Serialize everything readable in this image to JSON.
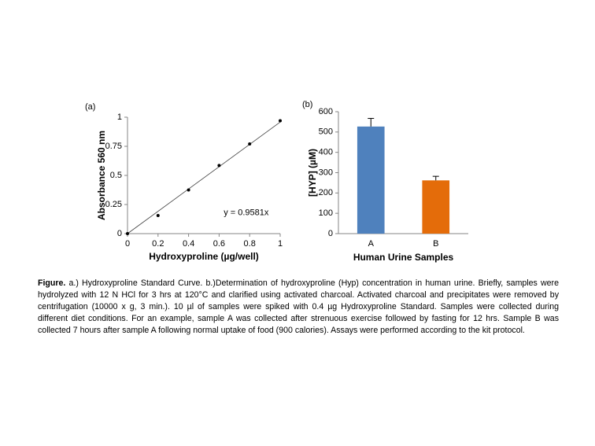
{
  "chart_data": [
    {
      "type": "scatter",
      "panel_label": "(a)",
      "x_label": "Hydroxyproline  (µg/well)",
      "y_label": "Absorbance 560 nm",
      "x": [
        0,
        0.2,
        0.4,
        0.6,
        0.8,
        1
      ],
      "values": [
        0,
        0.155,
        0.375,
        0.585,
        0.77,
        0.97
      ],
      "color": "#000000",
      "trendline": {
        "slope": 0.9581,
        "label": "y = 0.9581x"
      },
      "xlim": [
        0,
        1
      ],
      "xticks": [
        0,
        0.2,
        0.4,
        0.6,
        0.8,
        1
      ],
      "ylim": [
        0,
        1
      ],
      "yticks": [
        0,
        0.25,
        0.5,
        0.75,
        1
      ],
      "grid": false
    },
    {
      "type": "bar",
      "panel_label": "(b)",
      "x_label": "Human Urine Samples",
      "y_label": "[HYP] (µM)",
      "categories": [
        "A",
        "B"
      ],
      "values": [
        527,
        262
      ],
      "errors": [
        40,
        20
      ],
      "colors": [
        "#4f81bd",
        "#e46c0a"
      ],
      "ylim": [
        0,
        600
      ],
      "yticks": [
        0,
        100,
        200,
        300,
        400,
        500,
        600
      ],
      "grid": false
    }
  ],
  "caption": {
    "label": "Figure.",
    "text": "a.) Hydroxyproline Standard Curve. b.)Determination of hydroxyproline (Hyp) concentration in human urine. Briefly, samples were hydrolyzed with 12 N HCl for 3 hrs at 120°C and clarified using activated charcoal. Activated charcoal and precipitates were removed by centrifugation (10000 x g, 3 min.). 10 µl of samples were spiked with 0.4 µg Hydroxyproline Standard. Samples were collected during different diet conditions. For an example, sample A was collected after strenuous exercise followed by fasting for 12 hrs. Sample B was collected 7 hours after sample A following normal uptake of food (900 calories). Assays were performed according to the kit protocol."
  }
}
